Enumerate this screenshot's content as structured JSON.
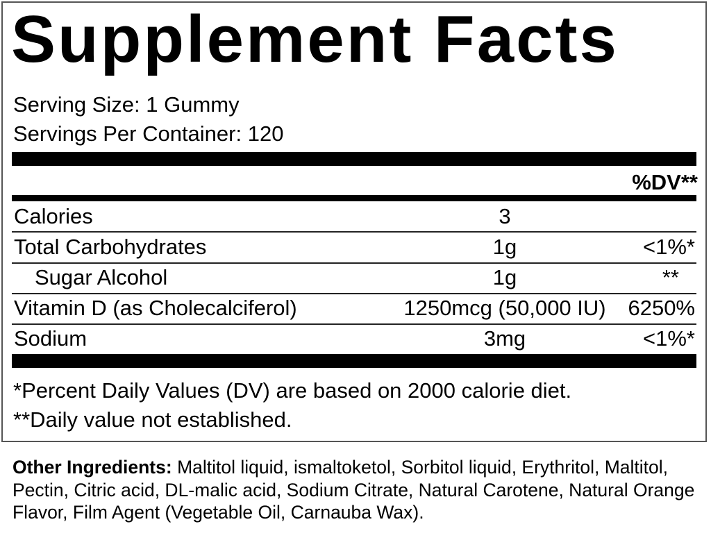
{
  "title": "Supplement Facts",
  "serving_size": "Serving Size: 1 Gummy",
  "servings_per_container": "Servings Per Container: 120",
  "dv_header": "%DV**",
  "rows": [
    {
      "name": "Calories",
      "amount": "3",
      "dv": ""
    },
    {
      "name": "Total Carbohydrates",
      "amount": "1g",
      "dv": "<1%*"
    },
    {
      "name": "Sugar Alcohol",
      "amount": "1g",
      "dv": "**"
    },
    {
      "name": "Vitamin D (as Cholecalciferol)",
      "amount": "1250mcg (50,000 IU)",
      "dv": "6250%"
    },
    {
      "name": "Sodium",
      "amount": "3mg",
      "dv": "<1%*"
    }
  ],
  "footnotes": [
    "*Percent Daily Values (DV) are based on 2000 calorie diet.",
    "**Daily value not established."
  ],
  "other_ingredients": {
    "label": "Other Ingredients:",
    "text": " Maltitol liquid, ismaltoketol, Sorbitol liquid, Erythritol, Maltitol, Pectin, Citric acid, DL-malic acid, Sodium Citrate, Natural Carotene, Natural Orange Flavor, Film Agent (Vegetable Oil, Carnauba Wax)."
  }
}
